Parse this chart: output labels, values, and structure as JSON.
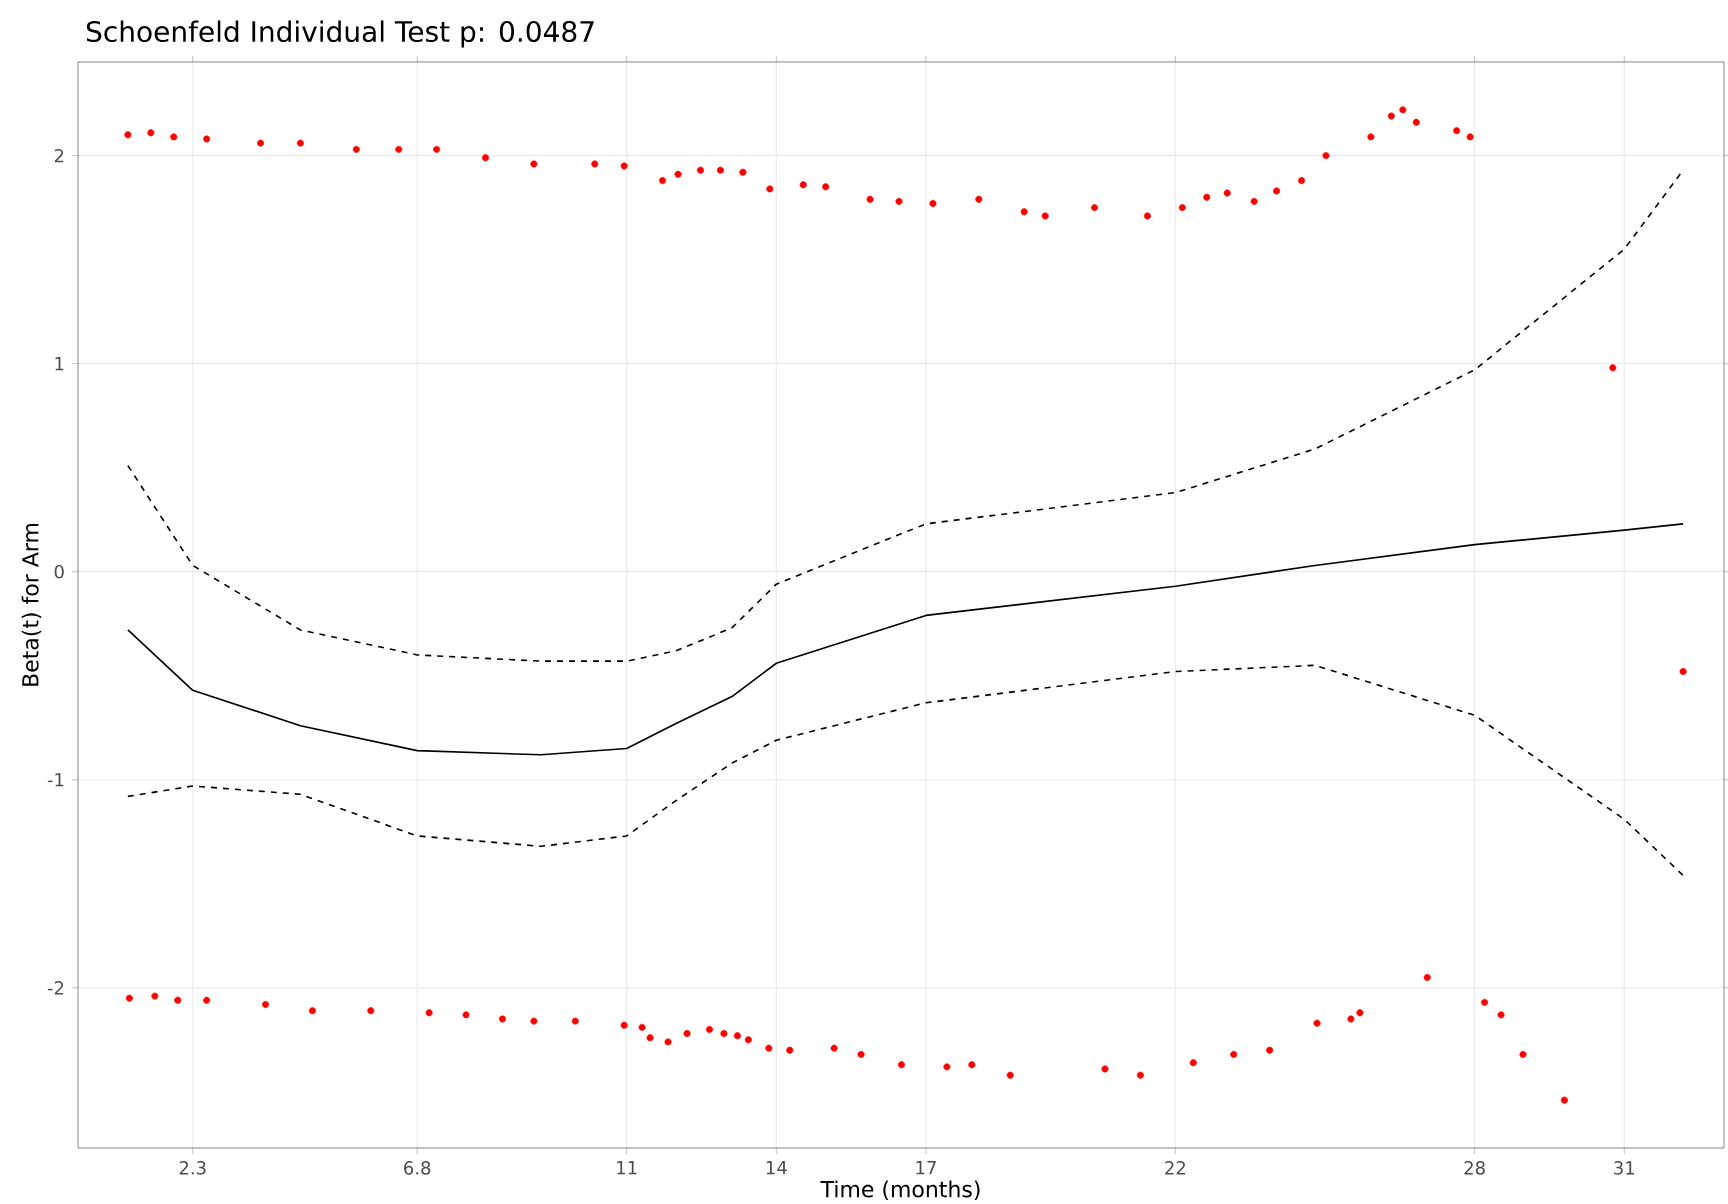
{
  "chart_data": {
    "type": "scatter",
    "title": "Schoenfeld Individual Test p: 0.0487",
    "xlabel": "Time (months)",
    "ylabel": "Beta(t) for Arm",
    "xlim": [
      0,
      33
    ],
    "ylim": [
      -2.77,
      2.45
    ],
    "xticks": [
      2.3,
      6.8,
      11,
      14,
      17,
      22,
      28,
      31
    ],
    "yticks": [
      -2,
      -1,
      0,
      1,
      2
    ],
    "grid": true,
    "series": [
      {
        "color": "#ff0000",
        "x": [
          1.0,
          1.46,
          1.92,
          2.58,
          3.66,
          4.46,
          5.58,
          6.43,
          7.19,
          8.17,
          9.14,
          10.36,
          10.95,
          11.72,
          12.03,
          12.48,
          12.88,
          13.33,
          13.87,
          14.54,
          14.99,
          15.88,
          16.46,
          17.14,
          18.06,
          18.97,
          19.39,
          20.38,
          21.44,
          22.14,
          22.63,
          23.04,
          23.58,
          24.03,
          24.53,
          25.02,
          25.92,
          26.33,
          26.56,
          26.83,
          27.64,
          27.91,
          30.77,
          32.18,
          1.03,
          1.54,
          2.0,
          2.58,
          3.76,
          4.7,
          5.87,
          7.04,
          7.78,
          8.51,
          9.14,
          9.97,
          10.95,
          11.31,
          11.47,
          11.83,
          12.21,
          12.66,
          12.95,
          13.22,
          13.44,
          13.85,
          14.27,
          15.16,
          15.7,
          16.51,
          17.42,
          17.92,
          18.69,
          20.59,
          21.3,
          22.36,
          23.17,
          23.89,
          24.84,
          25.52,
          25.7,
          27.05,
          28.2,
          28.53,
          28.97,
          29.8
        ],
        "values": [
          2.1,
          2.11,
          2.09,
          2.08,
          2.06,
          2.06,
          2.03,
          2.03,
          2.03,
          1.99,
          1.96,
          1.96,
          1.95,
          1.88,
          1.91,
          1.93,
          1.93,
          1.92,
          1.84,
          1.86,
          1.85,
          1.79,
          1.78,
          1.77,
          1.79,
          1.73,
          1.71,
          1.75,
          1.71,
          1.75,
          1.8,
          1.82,
          1.78,
          1.83,
          1.88,
          2.0,
          2.09,
          2.19,
          2.22,
          2.16,
          2.12,
          2.09,
          0.98,
          -0.48,
          -2.05,
          -2.04,
          -2.06,
          -2.06,
          -2.08,
          -2.11,
          -2.11,
          -2.12,
          -2.13,
          -2.15,
          -2.16,
          -2.16,
          -2.18,
          -2.19,
          -2.24,
          -2.26,
          -2.22,
          -2.2,
          -2.22,
          -2.23,
          -2.25,
          -2.29,
          -2.3,
          -2.29,
          -2.32,
          -2.37,
          -2.38,
          -2.37,
          -2.42,
          -2.39,
          -2.42,
          -2.36,
          -2.32,
          -2.3,
          -2.17,
          -2.15,
          -2.12,
          -1.95,
          -2.07,
          -2.13,
          -2.32,
          -2.54
        ]
      },
      {
        "type": "line",
        "color": "#000000",
        "line_style": "solid",
        "x": [
          1.0,
          2.3,
          4.46,
          6.8,
          9.28,
          11,
          11.99,
          13.11,
          14,
          17,
          22,
          24.8,
          28,
          31,
          32.18
        ],
        "values": [
          -0.28,
          -0.57,
          -0.74,
          -0.86,
          -0.88,
          -0.85,
          -0.73,
          -0.6,
          -0.44,
          -0.21,
          -0.07,
          0.03,
          0.13,
          0.2,
          0.23
        ]
      },
      {
        "type": "line",
        "color": "#000000",
        "line_style": "dashed",
        "x": [
          1.0,
          2.3,
          4.46,
          6.8,
          9.28,
          11,
          11.99,
          13.11,
          14,
          17,
          22,
          24.8,
          28,
          31,
          32.18
        ],
        "values": [
          0.51,
          0.03,
          -0.28,
          -0.4,
          -0.43,
          -0.43,
          -0.38,
          -0.27,
          -0.06,
          0.23,
          0.38,
          0.59,
          0.97,
          1.55,
          1.93
        ]
      },
      {
        "type": "line",
        "color": "#000000",
        "line_style": "dashed",
        "x": [
          1.0,
          2.3,
          4.46,
          6.8,
          9.28,
          11,
          11.99,
          13.11,
          14,
          17,
          22,
          24.8,
          28,
          31,
          32.18
        ],
        "values": [
          -1.08,
          -1.03,
          -1.07,
          -1.27,
          -1.32,
          -1.27,
          -1.1,
          -0.92,
          -0.81,
          -0.63,
          -0.48,
          -0.45,
          -0.69,
          -1.19,
          -1.46
        ]
      }
    ]
  }
}
